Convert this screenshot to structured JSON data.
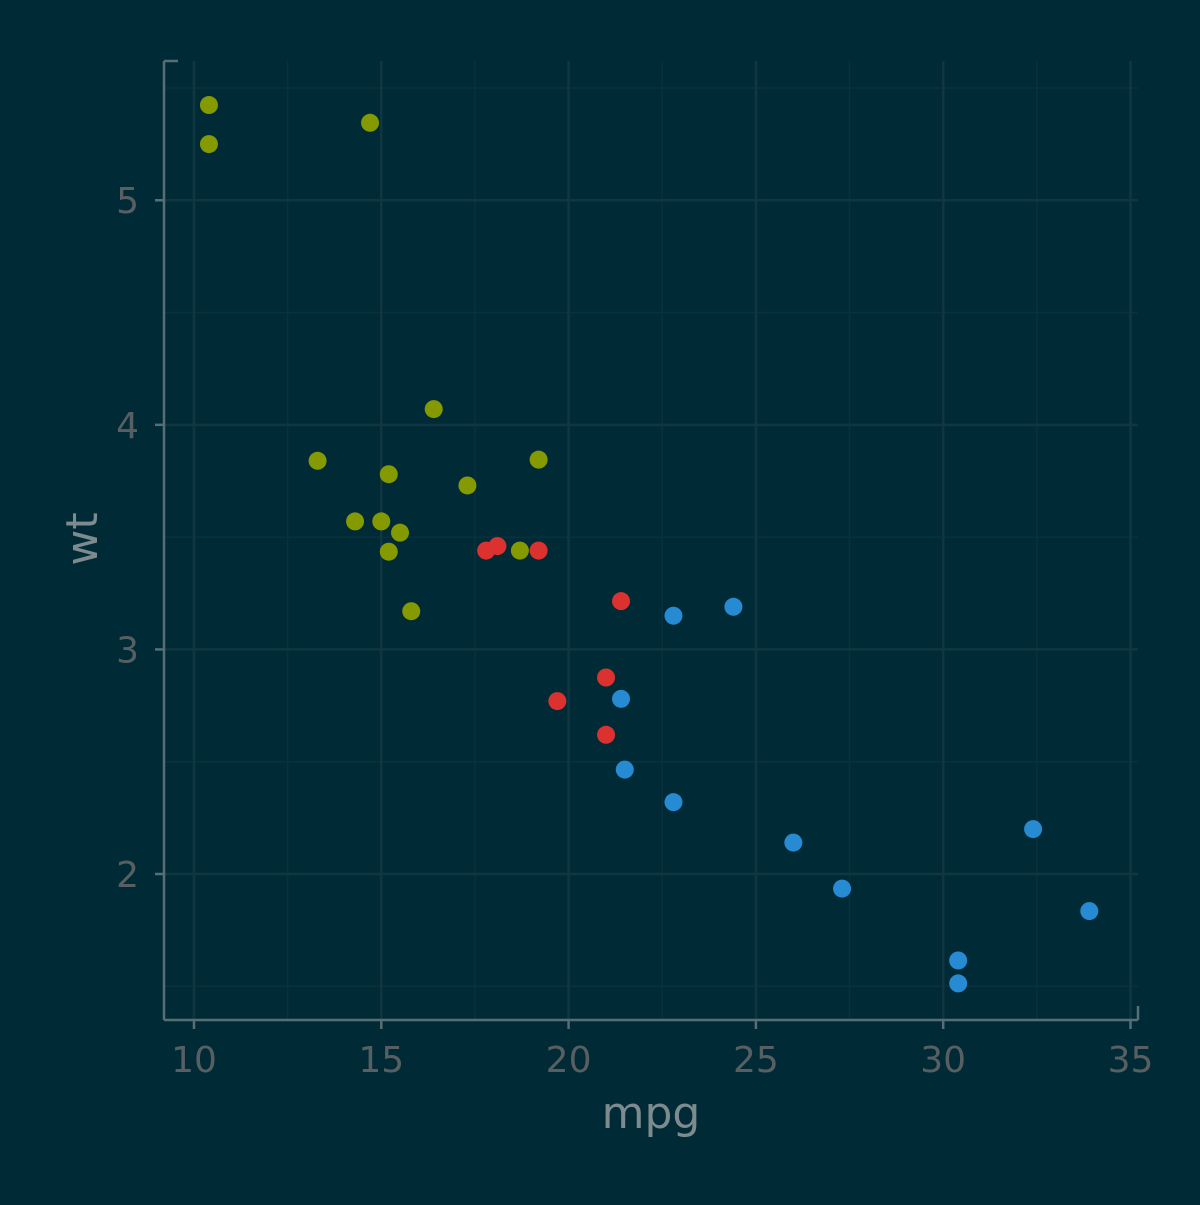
{
  "chart_data": {
    "type": "scatter",
    "title": "",
    "xlabel": "mpg",
    "ylabel": "wt",
    "xlim": [
      9.2,
      35.2
    ],
    "ylim": [
      1.35,
      5.62
    ],
    "xticks": [
      10,
      15,
      20,
      25,
      30,
      35
    ],
    "yticks": [
      2,
      3,
      4,
      5
    ],
    "grid": true,
    "legend": "none",
    "colors": {
      "background": "#002b36",
      "green": "#859900",
      "red": "#dc322f",
      "blue": "#268bd2"
    },
    "series": [
      {
        "color": "#859900",
        "points": [
          {
            "x": 10.4,
            "y": 5.424
          },
          {
            "x": 10.4,
            "y": 5.25
          },
          {
            "x": 14.7,
            "y": 5.345
          },
          {
            "x": 16.4,
            "y": 4.07
          },
          {
            "x": 13.3,
            "y": 3.84
          },
          {
            "x": 19.2,
            "y": 3.845
          },
          {
            "x": 15.2,
            "y": 3.78
          },
          {
            "x": 17.3,
            "y": 3.73
          },
          {
            "x": 14.3,
            "y": 3.57
          },
          {
            "x": 15.0,
            "y": 3.57
          },
          {
            "x": 15.5,
            "y": 3.52
          },
          {
            "x": 15.2,
            "y": 3.435
          },
          {
            "x": 18.7,
            "y": 3.44
          },
          {
            "x": 15.8,
            "y": 3.17
          }
        ]
      },
      {
        "color": "#dc322f",
        "points": [
          {
            "x": 17.8,
            "y": 3.44
          },
          {
            "x": 18.1,
            "y": 3.46
          },
          {
            "x": 19.2,
            "y": 3.44
          },
          {
            "x": 21.4,
            "y": 3.215
          },
          {
            "x": 21.0,
            "y": 2.875
          },
          {
            "x": 19.7,
            "y": 2.77
          },
          {
            "x": 21.0,
            "y": 2.62
          }
        ]
      },
      {
        "color": "#268bd2",
        "points": [
          {
            "x": 22.8,
            "y": 3.15
          },
          {
            "x": 24.4,
            "y": 3.19
          },
          {
            "x": 21.4,
            "y": 2.78
          },
          {
            "x": 21.5,
            "y": 2.465
          },
          {
            "x": 22.8,
            "y": 2.32
          },
          {
            "x": 26.0,
            "y": 2.14
          },
          {
            "x": 32.4,
            "y": 2.2
          },
          {
            "x": 27.3,
            "y": 1.935
          },
          {
            "x": 33.9,
            "y": 1.835
          },
          {
            "x": 30.4,
            "y": 1.615
          },
          {
            "x": 30.4,
            "y": 1.513
          }
        ]
      }
    ]
  }
}
